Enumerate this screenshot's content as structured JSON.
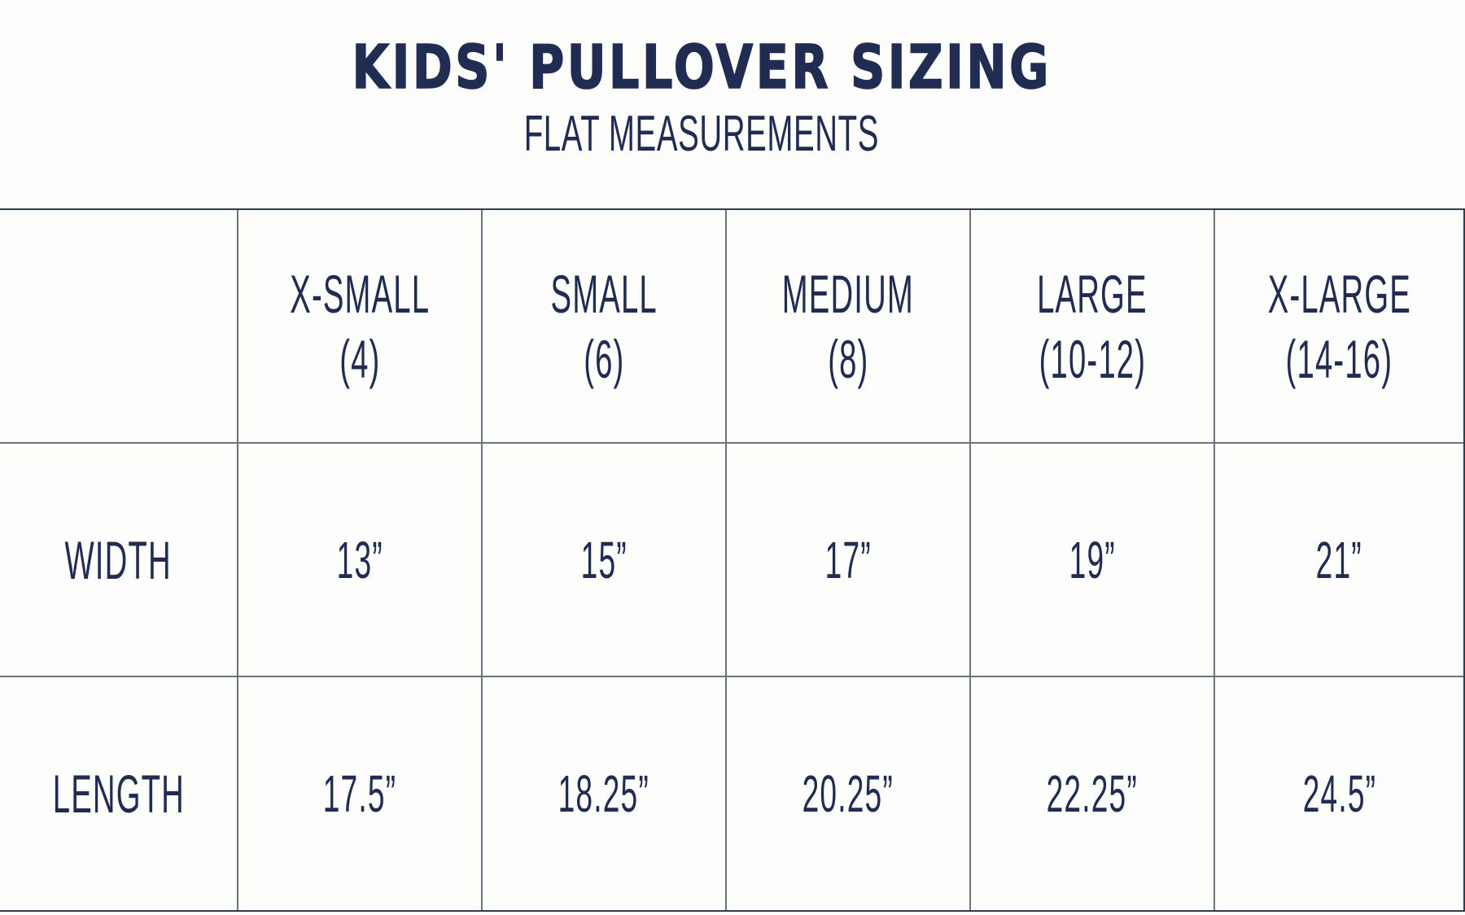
{
  "page": {
    "title": "KIDS' PULLOVER SIZING",
    "subtitle": "FLAT MEASUREMENTS"
  },
  "colors": {
    "text_navy": "#202c52",
    "grid_line": "#68747f",
    "outer_border": "#323d4c",
    "background": "#fdfdfc"
  },
  "size_table": {
    "corner": "",
    "columns": [
      {
        "label": "X-SMALL",
        "sub": "(4)"
      },
      {
        "label": "SMALL",
        "sub": "(6)"
      },
      {
        "label": "MEDIUM",
        "sub": "(8)"
      },
      {
        "label": "LARGE",
        "sub": "(10-12)"
      },
      {
        "label": "X-LARGE",
        "sub": "(14-16)"
      }
    ],
    "rows": [
      {
        "label": "WIDTH",
        "values": [
          "13”",
          "15”",
          "17”",
          "19”",
          "21”"
        ]
      },
      {
        "label": "LENGTH",
        "values": [
          "17.5”",
          "18.25”",
          "20.25”",
          "22.25”",
          "24.5”"
        ]
      }
    ]
  },
  "chart_data": {
    "type": "table",
    "title": "KIDS' PULLOVER SIZING",
    "subtitle": "FLAT MEASUREMENTS",
    "columns": [
      "",
      "X-SMALL (4)",
      "SMALL (6)",
      "MEDIUM (8)",
      "LARGE (10-12)",
      "X-LARGE (14-16)"
    ],
    "rows": [
      [
        "WIDTH",
        "13”",
        "15”",
        "17”",
        "19”",
        "21”"
      ],
      [
        "LENGTH",
        "17.5”",
        "18.25”",
        "20.25”",
        "22.25”",
        "24.5”"
      ]
    ],
    "width_inches": [
      13,
      15,
      17,
      19,
      21
    ],
    "length_inches": [
      17.5,
      18.25,
      20.25,
      22.25,
      24.5
    ]
  }
}
